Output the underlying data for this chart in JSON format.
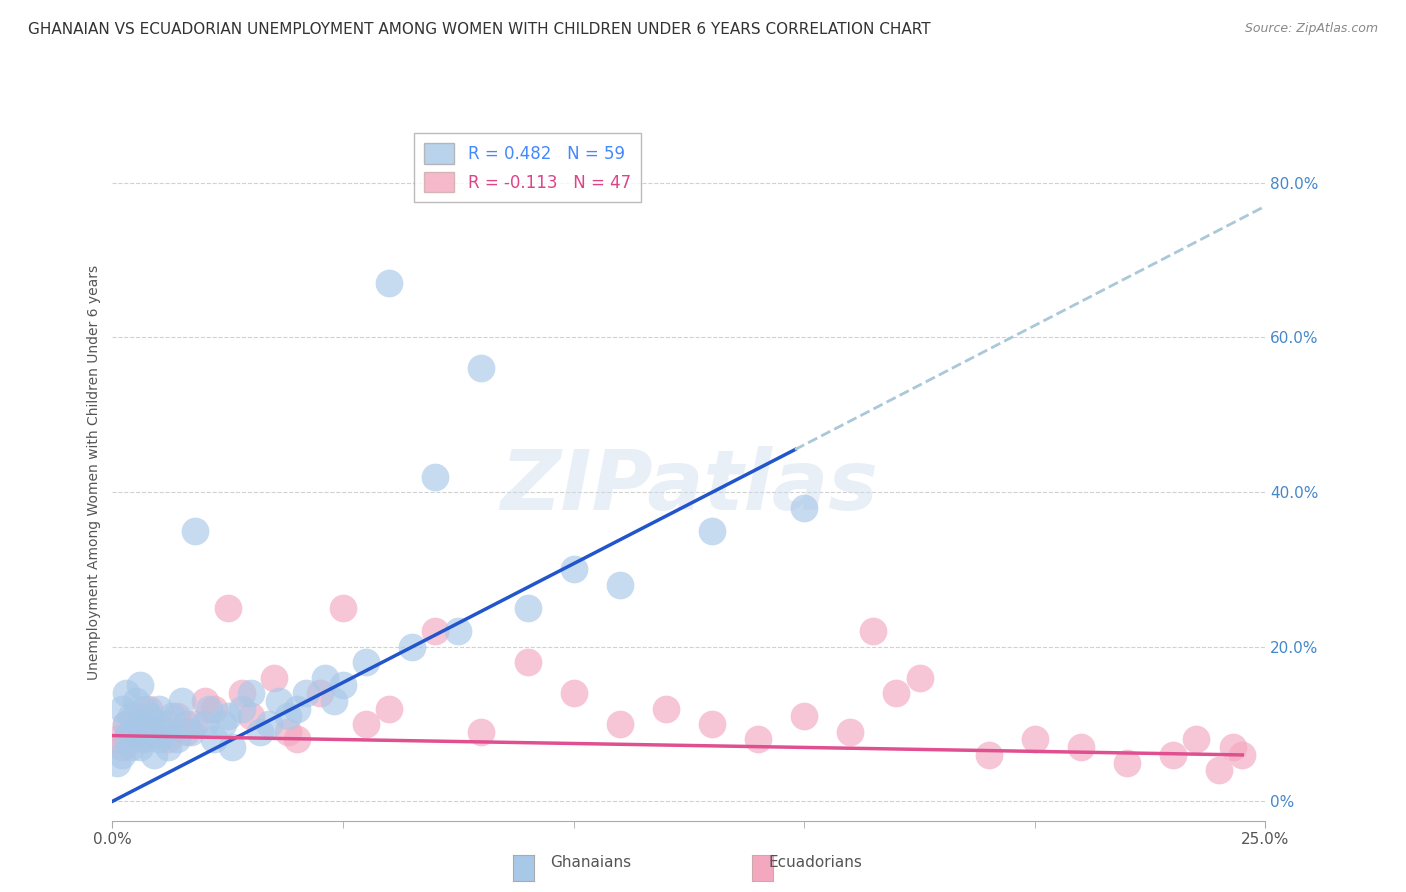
{
  "title": "GHANAIAN VS ECUADORIAN UNEMPLOYMENT AMONG WOMEN WITH CHILDREN UNDER 6 YEARS CORRELATION CHART",
  "source": "Source: ZipAtlas.com",
  "ylabel": "Unemployment Among Women with Children Under 6 years",
  "xlim": [
    0.0,
    0.25
  ],
  "ylim": [
    -0.025,
    0.875
  ],
  "yticks": [
    0.0,
    0.2,
    0.4,
    0.6,
    0.8
  ],
  "ytick_labels": [
    "0%",
    "20.0%",
    "40.0%",
    "60.0%",
    "80.0%"
  ],
  "legend_r1": "R = 0.482   N = 59",
  "legend_r2": "R = -0.113   N = 47",
  "ghanaian_color": "#a8c8e8",
  "ecuadorian_color": "#f4a8c0",
  "regression_blue": "#2255cc",
  "regression_pink": "#e05090",
  "regression_dash_color": "#aac8d8",
  "background_color": "#ffffff",
  "watermark": "ZIPatlas",
  "legend_text_color1": "#4488ff",
  "legend_text_color2": "#dd4488",
  "ghanaians_x": [
    0.001,
    0.002,
    0.002,
    0.003,
    0.003,
    0.003,
    0.004,
    0.004,
    0.004,
    0.005,
    0.005,
    0.006,
    0.006,
    0.006,
    0.007,
    0.007,
    0.008,
    0.008,
    0.009,
    0.009,
    0.01,
    0.01,
    0.011,
    0.012,
    0.012,
    0.013,
    0.014,
    0.015,
    0.016,
    0.017,
    0.018,
    0.02,
    0.021,
    0.022,
    0.024,
    0.025,
    0.026,
    0.028,
    0.03,
    0.032,
    0.034,
    0.036,
    0.038,
    0.04,
    0.042,
    0.046,
    0.048,
    0.05,
    0.055,
    0.06,
    0.065,
    0.07,
    0.075,
    0.08,
    0.09,
    0.1,
    0.11,
    0.13,
    0.15
  ],
  "ghanaians_y": [
    0.05,
    0.12,
    0.06,
    0.1,
    0.08,
    0.14,
    0.07,
    0.11,
    0.09,
    0.13,
    0.09,
    0.15,
    0.1,
    0.07,
    0.12,
    0.08,
    0.09,
    0.11,
    0.1,
    0.06,
    0.08,
    0.12,
    0.09,
    0.1,
    0.07,
    0.11,
    0.08,
    0.13,
    0.1,
    0.09,
    0.35,
    0.1,
    0.12,
    0.08,
    0.1,
    0.11,
    0.07,
    0.12,
    0.14,
    0.09,
    0.1,
    0.13,
    0.11,
    0.12,
    0.14,
    0.16,
    0.13,
    0.15,
    0.18,
    0.67,
    0.2,
    0.42,
    0.22,
    0.56,
    0.25,
    0.3,
    0.28,
    0.35,
    0.38
  ],
  "ecuadorians_x": [
    0.001,
    0.002,
    0.003,
    0.004,
    0.005,
    0.006,
    0.007,
    0.008,
    0.01,
    0.012,
    0.014,
    0.016,
    0.018,
    0.02,
    0.022,
    0.025,
    0.028,
    0.03,
    0.035,
    0.038,
    0.04,
    0.045,
    0.05,
    0.055,
    0.06,
    0.07,
    0.08,
    0.09,
    0.1,
    0.11,
    0.12,
    0.13,
    0.14,
    0.15,
    0.16,
    0.165,
    0.17,
    0.175,
    0.19,
    0.2,
    0.21,
    0.22,
    0.23,
    0.235,
    0.24,
    0.243,
    0.245
  ],
  "ecuadorians_y": [
    0.08,
    0.07,
    0.1,
    0.09,
    0.11,
    0.08,
    0.09,
    0.12,
    0.1,
    0.08,
    0.11,
    0.09,
    0.1,
    0.13,
    0.12,
    0.25,
    0.14,
    0.11,
    0.16,
    0.09,
    0.08,
    0.14,
    0.25,
    0.1,
    0.12,
    0.22,
    0.09,
    0.18,
    0.14,
    0.1,
    0.12,
    0.1,
    0.08,
    0.11,
    0.09,
    0.22,
    0.14,
    0.16,
    0.06,
    0.08,
    0.07,
    0.05,
    0.06,
    0.08,
    0.04,
    0.07,
    0.06
  ],
  "blue_line_x": [
    0.0,
    0.148
  ],
  "blue_line_y": [
    0.0,
    0.455
  ],
  "dash_line_x": [
    0.148,
    0.25
  ],
  "dash_line_y": [
    0.455,
    0.77
  ],
  "pink_line_x": [
    0.0,
    0.245
  ],
  "pink_line_y": [
    0.085,
    0.06
  ]
}
